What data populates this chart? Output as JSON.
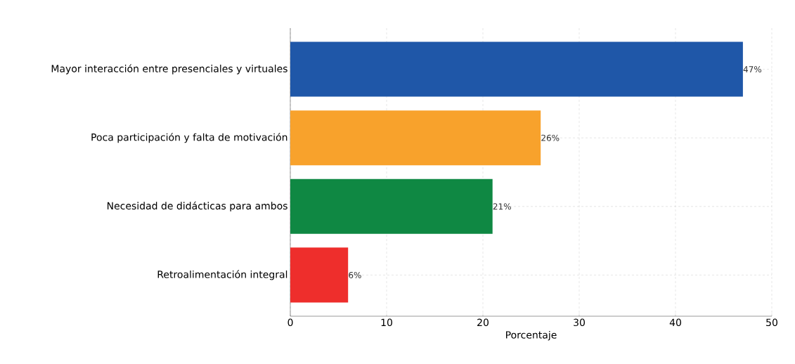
{
  "chart_data": {
    "type": "bar",
    "orientation": "horizontal",
    "xlabel": "Porcentaje",
    "categories": [
      "Mayor interacción entre presenciales y virtuales",
      "Poca participación y falta de motivación",
      "Necesidad de didácticas para ambos",
      "Retroalimentación integral"
    ],
    "values": [
      47,
      26,
      21,
      6
    ],
    "colors": [
      "#1f57a8",
      "#f8a22c",
      "#0f8843",
      "#ee2e2c"
    ],
    "value_labels": [
      "47%",
      "26%",
      "21%",
      "6%"
    ],
    "xlim": [
      0,
      50
    ],
    "xticks": [
      0,
      10,
      20,
      30,
      40,
      50
    ],
    "grid": true
  }
}
